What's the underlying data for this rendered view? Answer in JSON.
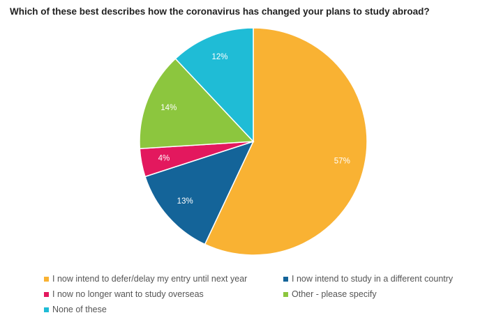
{
  "chart_data": {
    "type": "pie",
    "title": "Which of these best describes how the coronavirus has changed your plans to study abroad?",
    "slices": [
      {
        "label": "I now intend to defer/delay my entry until next year",
        "value": 57,
        "display": "57%",
        "color": "#F9B233"
      },
      {
        "label": "I now intend to study in a different country",
        "value": 13,
        "display": "13%",
        "color": "#146499"
      },
      {
        "label": "I now no longer want to study overseas",
        "value": 4,
        "display": "4%",
        "color": "#E3185E"
      },
      {
        "label": "Other - please specify",
        "value": 14,
        "display": "14%",
        "color": "#8CC63E"
      },
      {
        "label": "None of these",
        "value": 12,
        "display": "12%",
        "color": "#1FBCD6"
      }
    ],
    "legend_position": "bottom"
  }
}
